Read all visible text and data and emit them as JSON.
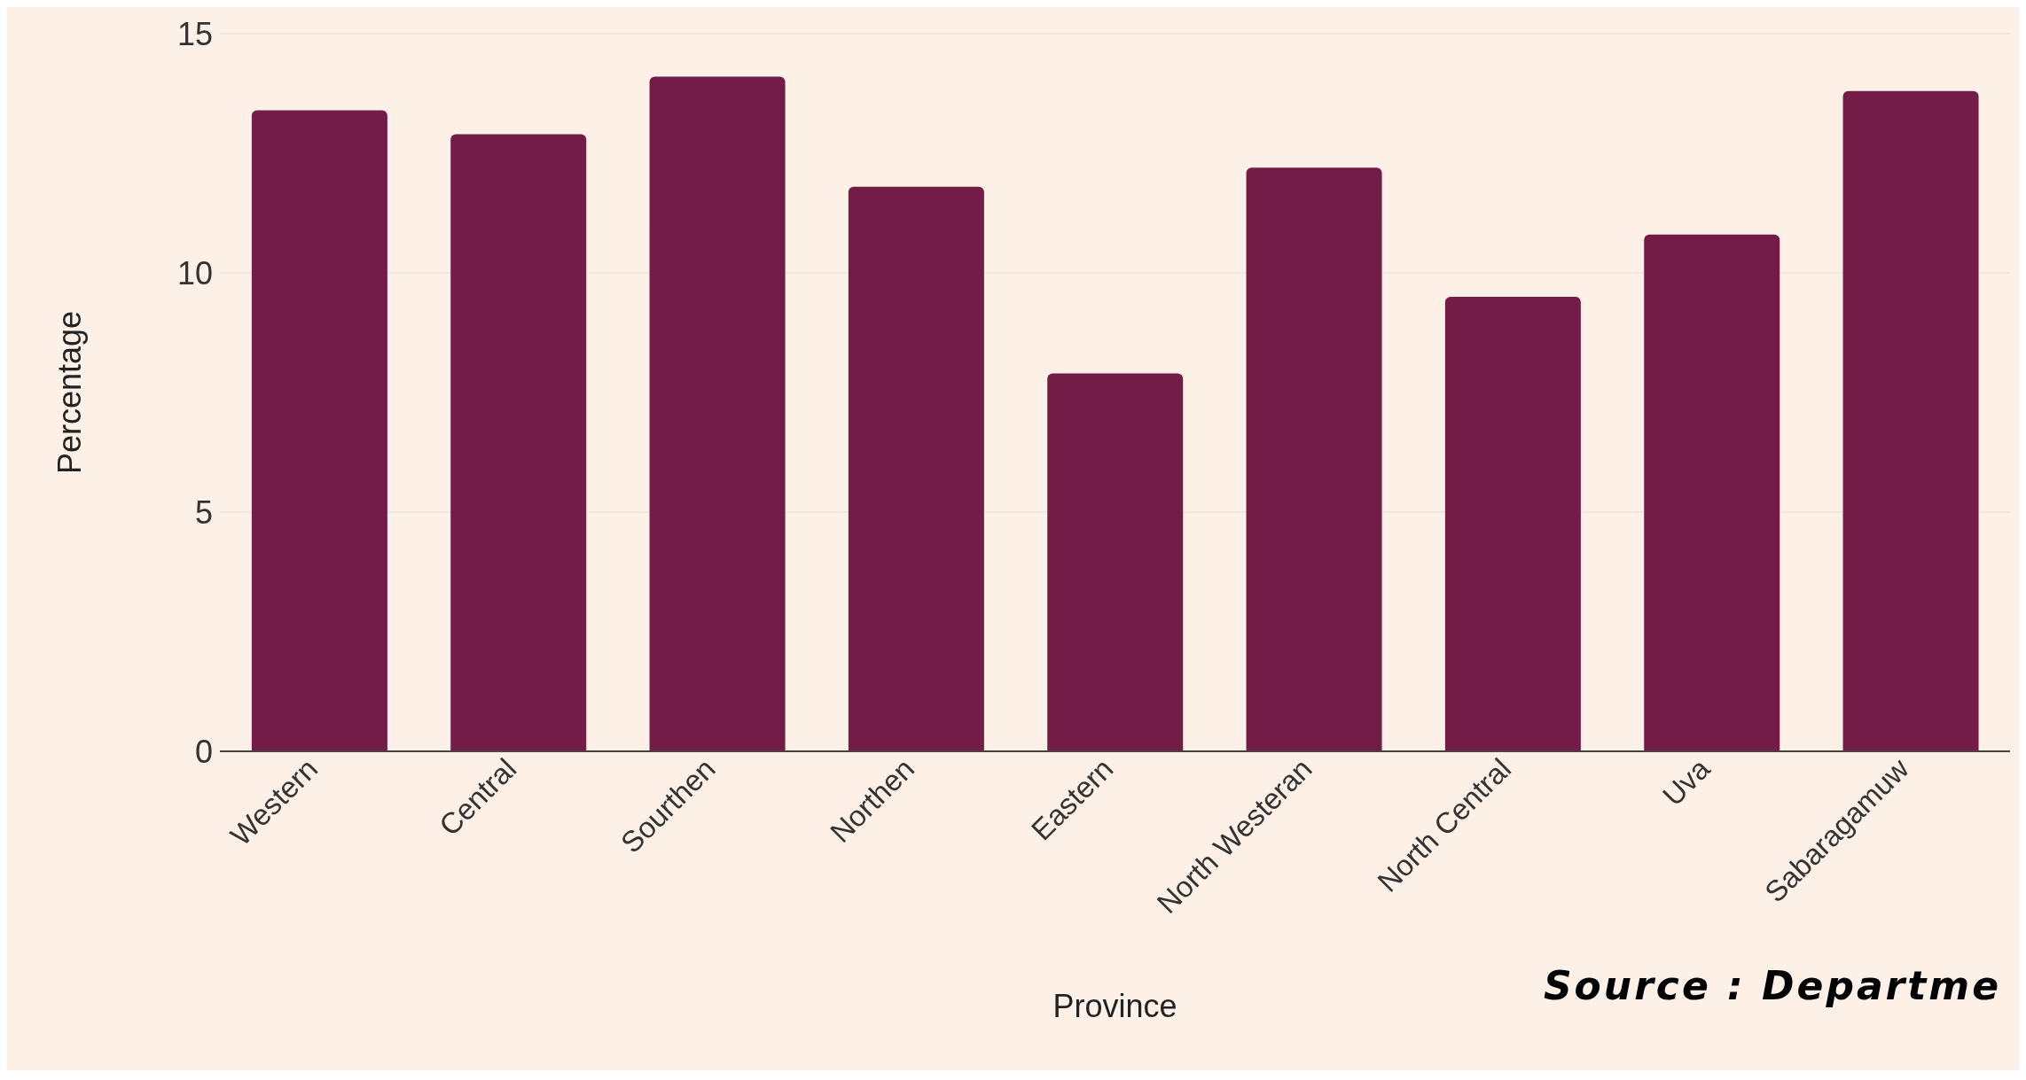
{
  "chart_data": {
    "type": "bar",
    "xlabel": "Province",
    "ylabel": "Percentage",
    "categories": [
      "Western",
      "Central",
      "Sourthen",
      "Northen",
      "Eastern",
      "North Westeran",
      "North Central",
      "Uva",
      "Sabaragamuw"
    ],
    "values": [
      13.4,
      12.9,
      14.1,
      11.8,
      7.9,
      12.2,
      9.5,
      10.8,
      13.8
    ],
    "color": "#731c47",
    "ylim": [
      0,
      15
    ],
    "yticks": [
      0,
      5,
      10,
      15
    ],
    "grid": "y",
    "legend": false,
    "annotations": [
      "Source : Departme"
    ]
  }
}
